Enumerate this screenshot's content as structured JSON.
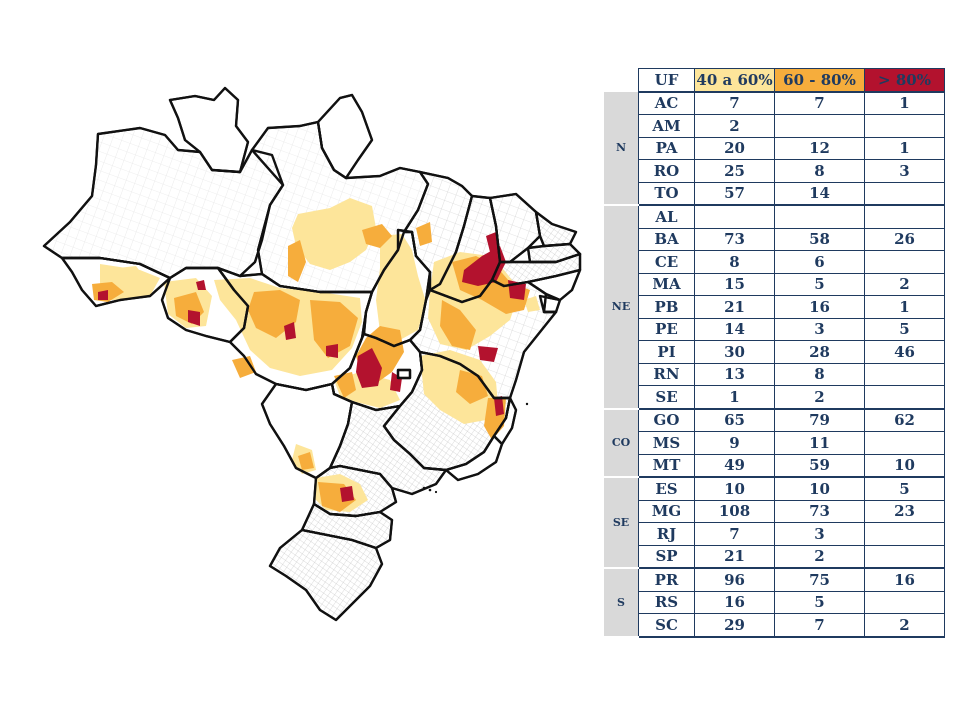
{
  "legend_colors": {
    "band_40_60": "#fde59a",
    "band_60_80": "#f6ad3c",
    "band_80_plus": "#b3122e",
    "boundary": "#111111",
    "municipal_lines": "#c8c8c8"
  },
  "table": {
    "headers": {
      "uf": "UF",
      "c1": "40 a 60%",
      "c2": "60 - 80%",
      "c3": "> 80%"
    },
    "regions": [
      {
        "name": "N",
        "rows": [
          {
            "uf": "AC",
            "c1": "7",
            "c2": "7",
            "c3": "1"
          },
          {
            "uf": "AM",
            "c1": "2",
            "c2": "",
            "c3": ""
          },
          {
            "uf": "PA",
            "c1": "20",
            "c2": "12",
            "c3": "1"
          },
          {
            "uf": "RO",
            "c1": "25",
            "c2": "8",
            "c3": "3"
          },
          {
            "uf": "TO",
            "c1": "57",
            "c2": "14",
            "c3": ""
          }
        ]
      },
      {
        "name": "NE",
        "rows": [
          {
            "uf": "AL",
            "c1": "",
            "c2": "",
            "c3": ""
          },
          {
            "uf": "BA",
            "c1": "73",
            "c2": "58",
            "c3": "26"
          },
          {
            "uf": "CE",
            "c1": "8",
            "c2": "6",
            "c3": ""
          },
          {
            "uf": "MA",
            "c1": "15",
            "c2": "5",
            "c3": "2"
          },
          {
            "uf": "PB",
            "c1": "21",
            "c2": "16",
            "c3": "1"
          },
          {
            "uf": "PE",
            "c1": "14",
            "c2": "3",
            "c3": "5"
          },
          {
            "uf": "PI",
            "c1": "30",
            "c2": "28",
            "c3": "46"
          },
          {
            "uf": "RN",
            "c1": "13",
            "c2": "8",
            "c3": ""
          },
          {
            "uf": "SE",
            "c1": "1",
            "c2": "2",
            "c3": ""
          }
        ]
      },
      {
        "name": "CO",
        "rows": [
          {
            "uf": "GO",
            "c1": "65",
            "c2": "79",
            "c3": "62"
          },
          {
            "uf": "MS",
            "c1": "9",
            "c2": "11",
            "c3": ""
          },
          {
            "uf": "MT",
            "c1": "49",
            "c2": "59",
            "c3": "10"
          }
        ]
      },
      {
        "name": "SE",
        "rows": [
          {
            "uf": "ES",
            "c1": "10",
            "c2": "10",
            "c3": "5"
          },
          {
            "uf": "MG",
            "c1": "108",
            "c2": "73",
            "c3": "23"
          },
          {
            "uf": "RJ",
            "c1": "7",
            "c2": "3",
            "c3": ""
          },
          {
            "uf": "SP",
            "c1": "21",
            "c2": "2",
            "c3": ""
          }
        ]
      },
      {
        "name": "S",
        "rows": [
          {
            "uf": "PR",
            "c1": "96",
            "c2": "75",
            "c3": "16"
          },
          {
            "uf": "RS",
            "c1": "16",
            "c2": "5",
            "c3": ""
          },
          {
            "uf": "SC",
            "c1": "29",
            "c2": "7",
            "c3": "2"
          }
        ]
      }
    ]
  }
}
